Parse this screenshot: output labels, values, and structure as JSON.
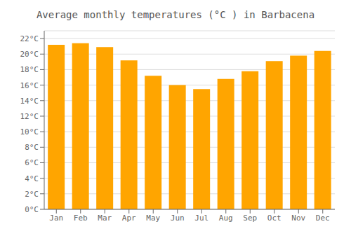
{
  "chart_data": {
    "type": "bar",
    "title": "Average monthly temperatures (°C ) in Barbacena",
    "categories": [
      "Jan",
      "Feb",
      "Mar",
      "Apr",
      "May",
      "Jun",
      "Jul",
      "Aug",
      "Sep",
      "Oct",
      "Nov",
      "Dec"
    ],
    "values": [
      21.2,
      21.4,
      20.9,
      19.2,
      17.2,
      16.0,
      15.5,
      16.8,
      17.8,
      19.1,
      19.8,
      20.4
    ],
    "color": "#FFA500",
    "ylim": [
      0,
      23
    ],
    "yticks": [
      {
        "value": 0,
        "label": "0°C"
      },
      {
        "value": 2,
        "label": "2°C"
      },
      {
        "value": 4,
        "label": "4°C"
      },
      {
        "value": 6,
        "label": "6°C"
      },
      {
        "value": 8,
        "label": "8°C"
      },
      {
        "value": 10,
        "label": "10°C"
      },
      {
        "value": 12,
        "label": "12°C"
      },
      {
        "value": 14,
        "label": "14°C"
      },
      {
        "value": 16,
        "label": "16°C"
      },
      {
        "value": 18,
        "label": "18°C"
      },
      {
        "value": 20,
        "label": "20°C"
      },
      {
        "value": 22,
        "label": "22°C"
      }
    ],
    "grid": true
  }
}
